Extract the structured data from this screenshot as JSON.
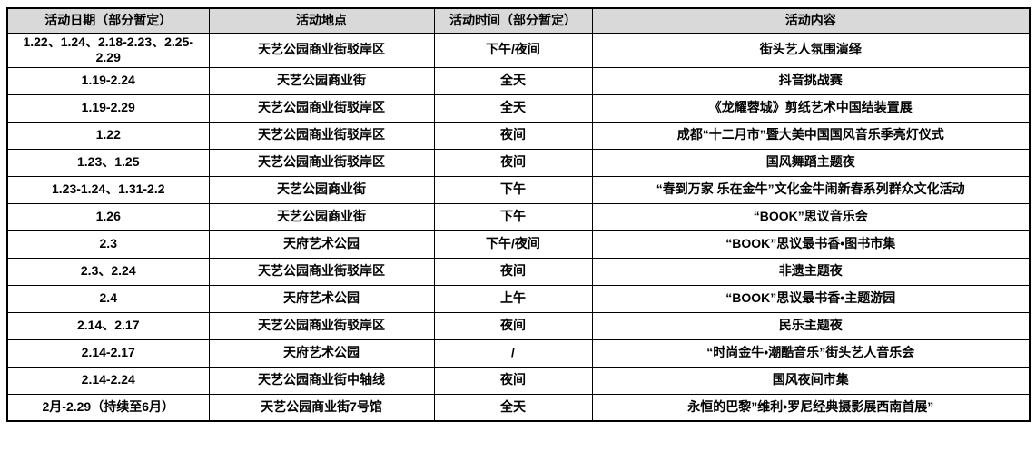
{
  "colors": {
    "header_bg": "#d9d9d9",
    "border": "#000000",
    "text": "#000000",
    "page_bg": "#ffffff"
  },
  "table": {
    "headers": [
      "活动日期（部分暂定）",
      "活动地点",
      "活动时间（部分暂定）",
      "活动内容"
    ],
    "rows": [
      {
        "date": "1.22、1.24、2.18-2.23、2.25-2.29",
        "location": "天艺公园商业街驳岸区",
        "time": "下午/夜间",
        "content": "街头艺人氛围演绎"
      },
      {
        "date": "1.19-2.24",
        "location": "天艺公园商业街",
        "time": "全天",
        "content": "抖音挑战赛"
      },
      {
        "date": "1.19-2.29",
        "location": "天艺公园商业街驳岸区",
        "time": "全天",
        "content": "《龙耀蓉城》剪纸艺术中国结装置展"
      },
      {
        "date": "1.22",
        "location": "天艺公园商业街驳岸区",
        "time": "夜间",
        "content": "成都“十二月市”暨大美中国国风音乐季亮灯仪式"
      },
      {
        "date": "1.23、1.25",
        "location": "天艺公园商业街驳岸区",
        "time": "夜间",
        "content": "国风舞蹈主题夜"
      },
      {
        "date": "1.23-1.24、1.31-2.2",
        "location": "天艺公园商业街",
        "time": "下午",
        "content": "“春到万家 乐在金牛”文化金牛闹新春系列群众文化活动"
      },
      {
        "date": "1.26",
        "location": "天艺公园商业街",
        "time": "下午",
        "content": "“BOOK”思议音乐会"
      },
      {
        "date": "2.3",
        "location": "天府艺术公园",
        "time": "下午/夜间",
        "content": "“BOOK”思议最书香•图书市集"
      },
      {
        "date": "2.3、2.24",
        "location": "天艺公园商业街驳岸区",
        "time": "夜间",
        "content": "非遗主题夜"
      },
      {
        "date": "2.4",
        "location": "天府艺术公园",
        "time": "上午",
        "content": "“BOOK”思议最书香•主题游园"
      },
      {
        "date": "2.14、2.17",
        "location": "天艺公园商业街驳岸区",
        "time": "夜间",
        "content": "民乐主题夜"
      },
      {
        "date": "2.14-2.17",
        "location": "天府艺术公园",
        "time": "/",
        "content": "“时尚金牛•潮酷音乐”街头艺人音乐会"
      },
      {
        "date": "2.14-2.24",
        "location": "天艺公园商业街中轴线",
        "time": "夜间",
        "content": "国风夜间市集"
      },
      {
        "date": "2月-2.29（持续至6月）",
        "location": "天艺公园商业街7号馆",
        "time": "全天",
        "content": "永恒的巴黎”维利•罗尼经典摄影展西南首展”"
      }
    ]
  }
}
